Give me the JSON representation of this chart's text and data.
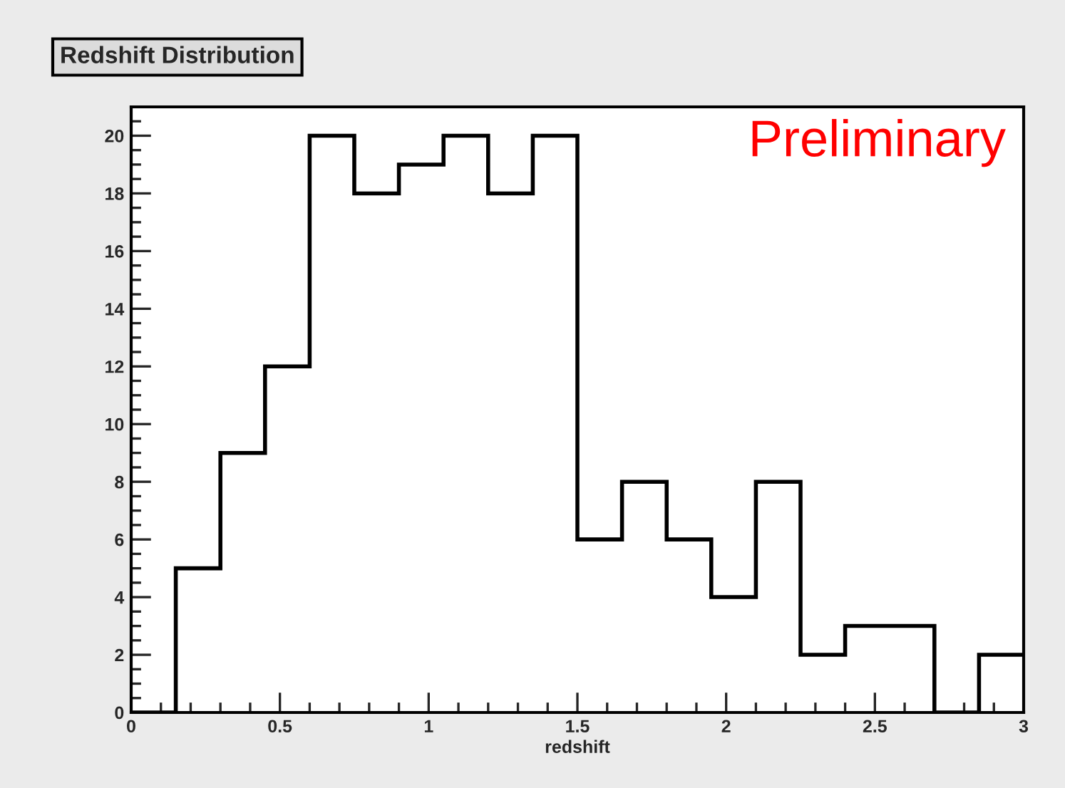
{
  "chart_data": {
    "type": "histogram",
    "title": "Redshift Distribution",
    "xlabel": "redshift",
    "bins": [
      0,
      0.15,
      0.3,
      0.45,
      0.6,
      0.75,
      0.9,
      1.05,
      1.2,
      1.35,
      1.5,
      1.65,
      1.8,
      1.95,
      2.1,
      2.25,
      2.4,
      2.55,
      2.7,
      2.85,
      3.0
    ],
    "values": [
      0,
      5,
      9,
      12,
      20,
      18,
      19,
      20,
      18,
      20,
      6,
      8,
      6,
      4,
      8,
      2,
      3,
      3,
      0,
      2
    ],
    "color": "#000000",
    "xlim": [
      0,
      3
    ],
    "ylim": [
      0,
      21
    ],
    "xticks": [
      0,
      0.5,
      1,
      1.5,
      2,
      2.5,
      3
    ],
    "yticks": [
      0,
      2,
      4,
      6,
      8,
      10,
      12,
      14,
      16,
      18,
      20
    ],
    "annotations": [
      "Preliminary"
    ],
    "grid": false,
    "legend": false
  }
}
